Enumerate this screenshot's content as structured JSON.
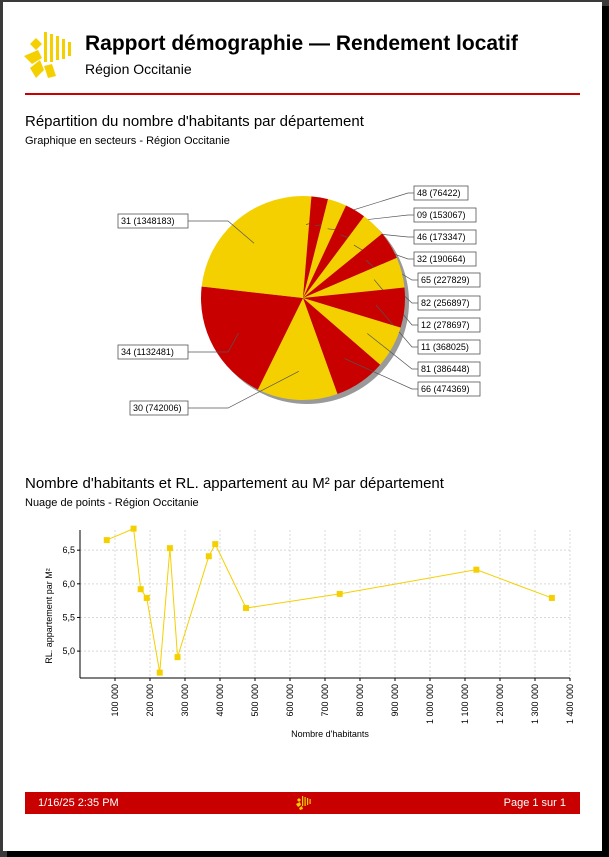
{
  "header": {
    "title": "Rapport démographie — Rendement locatif",
    "subtitle": "Région Occitanie"
  },
  "colors": {
    "brand_red": "#c80000",
    "brand_yellow": "#f5d000"
  },
  "section1": {
    "title": "Répartition du nombre d'habitants par département",
    "subtitle": "Graphique en secteurs - Région Occitanie"
  },
  "section2": {
    "title": "Nombre d'habitants et RL. appartement au M² par département",
    "subtitle": "Nuage de points - Région Occitanie"
  },
  "footer": {
    "date": "1/16/25 2:35 PM",
    "page": "Page 1 sur  1"
  },
  "chart_data": [
    {
      "type": "pie",
      "slices": [
        {
          "label": "48 (76422)",
          "value": 76422
        },
        {
          "label": "09 (153067)",
          "value": 153067
        },
        {
          "label": "46 (173347)",
          "value": 173347
        },
        {
          "label": "32 (190664)",
          "value": 190664
        },
        {
          "label": "65 (227829)",
          "value": 227829
        },
        {
          "label": "82 (256897)",
          "value": 256897
        },
        {
          "label": "12 (278697)",
          "value": 278697
        },
        {
          "label": "11 (368025)",
          "value": 368025
        },
        {
          "label": "81 (386448)",
          "value": 386448
        },
        {
          "label": "66 (474369)",
          "value": 474369
        },
        {
          "label": "30 (742006)",
          "value": 742006
        },
        {
          "label": "34 (1132481)",
          "value": 1132481
        },
        {
          "label": "31 (1348183)",
          "value": 1348183
        }
      ],
      "colors": [
        "#f5d000",
        "#c80000"
      ]
    },
    {
      "type": "line",
      "xlabel": "Nombre d'habitants",
      "ylabel": "RL. appartement par M²",
      "xlim": [
        0,
        1400000
      ],
      "ylim": [
        4.6,
        6.8
      ],
      "xticks": [
        "100 000",
        "200 000",
        "300 000",
        "400 000",
        "500 000",
        "600 000",
        "700 000",
        "800 000",
        "900 000",
        "1 000 000",
        "1 100 000",
        "1 200 000",
        "1 300 000",
        "1 400 000"
      ],
      "yticks": [
        "5,0",
        "5,5",
        "6,0",
        "6,5"
      ],
      "points": [
        {
          "x": 76422,
          "y": 6.65
        },
        {
          "x": 153067,
          "y": 6.82
        },
        {
          "x": 173347,
          "y": 5.92
        },
        {
          "x": 190664,
          "y": 5.79
        },
        {
          "x": 227829,
          "y": 4.68
        },
        {
          "x": 256897,
          "y": 6.53
        },
        {
          "x": 278697,
          "y": 4.91
        },
        {
          "x": 368025,
          "y": 6.41
        },
        {
          "x": 386448,
          "y": 6.59
        },
        {
          "x": 474369,
          "y": 5.64
        },
        {
          "x": 742006,
          "y": 5.85
        },
        {
          "x": 1132481,
          "y": 6.21
        },
        {
          "x": 1348183,
          "y": 5.79
        }
      ],
      "color": "#f5d000"
    }
  ]
}
